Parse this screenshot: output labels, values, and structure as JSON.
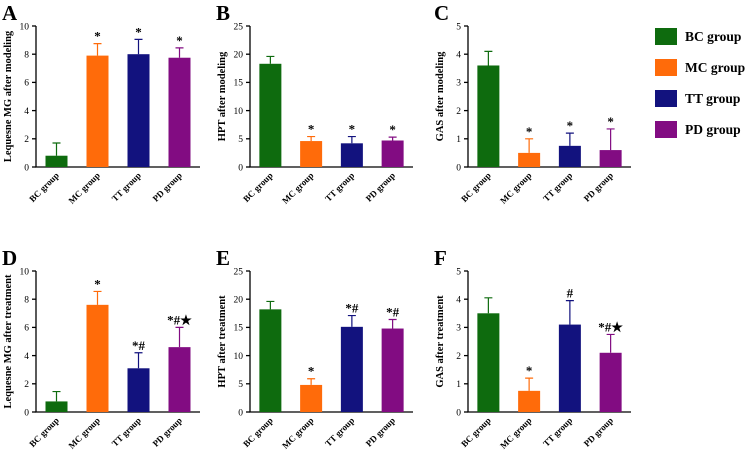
{
  "legend": [
    {
      "label": "BC group",
      "color": "#0e6b0e"
    },
    {
      "label": "MC group",
      "color": "#ff6b0a"
    },
    {
      "label": "TT group",
      "color": "#12127e"
    },
    {
      "label": "PD group",
      "color": "#820c82"
    }
  ],
  "chart_data": [
    {
      "panel": "A",
      "type": "bar",
      "ylabel": "Lequesne MG after modeling",
      "ylim": [
        0,
        10
      ],
      "yticks": [
        0,
        2,
        4,
        6,
        8,
        10
      ],
      "categories": [
        "BC group",
        "MC group",
        "TT group",
        "PD group"
      ],
      "values": [
        0.8,
        7.9,
        8.0,
        7.75
      ],
      "errors": [
        0.9,
        0.85,
        1.05,
        0.7
      ],
      "annotations": [
        "",
        "*",
        "*",
        "*"
      ]
    },
    {
      "panel": "B",
      "type": "bar",
      "ylabel": "HPT after modeling",
      "ylim": [
        0,
        25
      ],
      "yticks": [
        0,
        5,
        10,
        15,
        20,
        25
      ],
      "categories": [
        "BC group",
        "MC group",
        "TT group",
        "PD group"
      ],
      "values": [
        18.3,
        4.6,
        4.2,
        4.7
      ],
      "errors": [
        1.3,
        0.8,
        1.2,
        0.6
      ],
      "annotations": [
        "",
        "*",
        "*",
        "*"
      ]
    },
    {
      "panel": "C",
      "type": "bar",
      "ylabel": "GAS after modeling",
      "ylim": [
        0,
        5
      ],
      "yticks": [
        0,
        1,
        2,
        3,
        4,
        5
      ],
      "categories": [
        "BC group",
        "MC group",
        "TT group",
        "PD group"
      ],
      "values": [
        3.6,
        0.5,
        0.75,
        0.6
      ],
      "errors": [
        0.5,
        0.5,
        0.45,
        0.75
      ],
      "annotations": [
        "",
        "*",
        "*",
        "*"
      ]
    },
    {
      "panel": "D",
      "type": "bar",
      "ylabel": "Lequesne MG after treatment",
      "ylim": [
        0,
        10
      ],
      "yticks": [
        0,
        2,
        4,
        6,
        8,
        10
      ],
      "categories": [
        "BC group",
        "MC group",
        "TT group",
        "PD group"
      ],
      "values": [
        0.75,
        7.6,
        3.1,
        4.6
      ],
      "errors": [
        0.7,
        0.95,
        1.1,
        1.4
      ],
      "annotations": [
        "",
        "*",
        "*#",
        "*#★"
      ]
    },
    {
      "panel": "E",
      "type": "bar",
      "ylabel": "HPT after treatment",
      "ylim": [
        0,
        25
      ],
      "yticks": [
        0,
        5,
        10,
        15,
        20,
        25
      ],
      "categories": [
        "BC group",
        "MC group",
        "TT group",
        "PD group"
      ],
      "values": [
        18.2,
        4.8,
        15.1,
        14.8
      ],
      "errors": [
        1.4,
        1.1,
        2.0,
        1.6
      ],
      "annotations": [
        "",
        "*",
        "*#",
        "*#"
      ]
    },
    {
      "panel": "F",
      "type": "bar",
      "ylabel": "GAS after treatment",
      "ylim": [
        0,
        5
      ],
      "yticks": [
        0,
        1,
        2,
        3,
        4,
        5
      ],
      "categories": [
        "BC group",
        "MC group",
        "TT group",
        "PD group"
      ],
      "values": [
        3.5,
        0.75,
        3.1,
        2.1
      ],
      "errors": [
        0.55,
        0.45,
        0.85,
        0.65
      ],
      "annotations": [
        "",
        "*",
        "#",
        "*#★"
      ]
    }
  ]
}
